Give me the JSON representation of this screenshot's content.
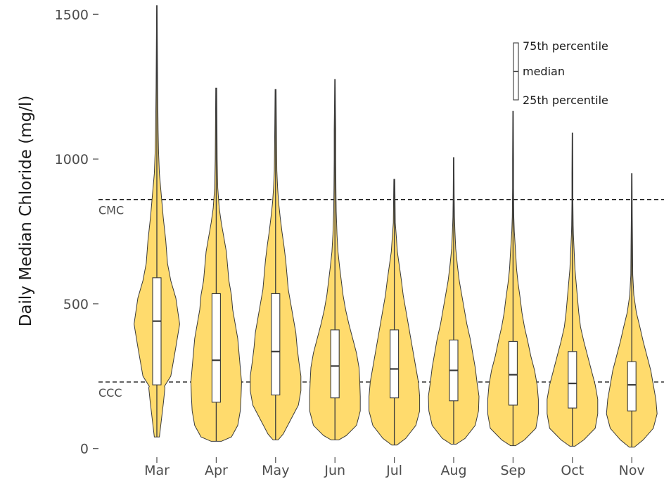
{
  "chart_data": {
    "type": "violin",
    "ylabel": "Daily Median Chloride (mg/l)",
    "xlabel": "",
    "ylim": [
      -25,
      1525
    ],
    "yticks": [
      0,
      500,
      1000,
      1500
    ],
    "grid": false,
    "legend_position": "top-right",
    "fill_color": "#ffdb6d",
    "reference_lines": [
      {
        "label": "CMC",
        "value": 860
      },
      {
        "label": "CCC",
        "value": 230
      }
    ],
    "legend": {
      "q75_label": "75th percentile",
      "median_label": "median",
      "q25_label": "25th percentile"
    },
    "categories": [
      "Mar",
      "Apr",
      "May",
      "Jun",
      "Jul",
      "Aug",
      "Sep",
      "Oct",
      "Nov"
    ],
    "series": [
      {
        "month": "Mar",
        "min": 40,
        "max": 1530,
        "q25": 220,
        "median": 440,
        "q75": 590,
        "density_y": [
          40,
          100,
          160,
          210,
          215,
          250,
          350,
          430,
          520,
          580,
          640,
          720,
          800,
          870,
          950,
          1020,
          1100,
          1250,
          1400,
          1530
        ],
        "density_w": [
          0.1,
          0.18,
          0.26,
          0.32,
          0.3,
          0.55,
          0.75,
          0.9,
          0.75,
          0.55,
          0.42,
          0.35,
          0.25,
          0.18,
          0.1,
          0.07,
          0.05,
          0.03,
          0.02,
          0.01
        ]
      },
      {
        "month": "Apr",
        "min": 25,
        "max": 1245,
        "q25": 160,
        "median": 305,
        "q75": 535,
        "density_y": [
          25,
          40,
          80,
          130,
          180,
          230,
          280,
          330,
          380,
          430,
          480,
          530,
          580,
          630,
          680,
          730,
          780,
          830,
          900,
          1000,
          1100,
          1245
        ],
        "density_w": [
          0.2,
          0.6,
          0.85,
          0.95,
          0.98,
          1.0,
          0.95,
          0.9,
          0.85,
          0.75,
          0.65,
          0.6,
          0.5,
          0.45,
          0.4,
          0.3,
          0.2,
          0.12,
          0.06,
          0.04,
          0.03,
          0.02
        ]
      },
      {
        "month": "May",
        "min": 30,
        "max": 1240,
        "q25": 185,
        "median": 335,
        "q75": 535,
        "density_y": [
          30,
          50,
          100,
          150,
          200,
          250,
          300,
          350,
          400,
          450,
          500,
          550,
          600,
          650,
          700,
          750,
          800,
          850,
          900,
          960,
          1050,
          1130,
          1240
        ],
        "density_w": [
          0.1,
          0.3,
          0.6,
          0.9,
          1.0,
          1.0,
          0.92,
          0.85,
          0.8,
          0.7,
          0.6,
          0.5,
          0.45,
          0.4,
          0.33,
          0.25,
          0.18,
          0.12,
          0.08,
          0.05,
          0.04,
          0.03,
          0.02
        ]
      },
      {
        "month": "Jun",
        "min": 30,
        "max": 1275,
        "q25": 175,
        "median": 285,
        "q75": 410,
        "density_y": [
          30,
          45,
          80,
          130,
          180,
          230,
          280,
          330,
          380,
          430,
          480,
          530,
          580,
          630,
          680,
          740,
          820,
          900,
          1000,
          1100,
          1180,
          1275
        ],
        "density_w": [
          0.15,
          0.45,
          0.85,
          1.0,
          1.0,
          0.98,
          0.95,
          0.85,
          0.7,
          0.55,
          0.42,
          0.32,
          0.25,
          0.18,
          0.12,
          0.08,
          0.05,
          0.04,
          0.03,
          0.03,
          0.02,
          0.01
        ]
      },
      {
        "month": "Jul",
        "min": 12,
        "max": 930,
        "q25": 175,
        "median": 275,
        "q75": 410,
        "density_y": [
          12,
          35,
          80,
          130,
          180,
          230,
          280,
          330,
          380,
          430,
          480,
          530,
          580,
          630,
          680,
          730,
          780,
          850,
          930
        ],
        "density_w": [
          0.1,
          0.45,
          0.85,
          1.0,
          1.0,
          0.95,
          0.85,
          0.75,
          0.65,
          0.55,
          0.45,
          0.35,
          0.28,
          0.2,
          0.12,
          0.08,
          0.04,
          0.03,
          0.02
        ]
      },
      {
        "month": "Aug",
        "min": 15,
        "max": 1005,
        "q25": 165,
        "median": 270,
        "q75": 375,
        "density_y": [
          15,
          35,
          80,
          130,
          180,
          230,
          280,
          330,
          380,
          430,
          480,
          530,
          580,
          630,
          690,
          750,
          800,
          880,
          1005
        ],
        "density_w": [
          0.1,
          0.45,
          0.85,
          0.98,
          1.0,
          0.92,
          0.85,
          0.75,
          0.65,
          0.52,
          0.42,
          0.32,
          0.22,
          0.15,
          0.08,
          0.05,
          0.03,
          0.02,
          0.01
        ]
      },
      {
        "month": "Sep",
        "min": 10,
        "max": 1165,
        "q25": 150,
        "median": 255,
        "q75": 370,
        "density_y": [
          10,
          30,
          70,
          120,
          170,
          220,
          270,
          320,
          370,
          420,
          470,
          520,
          570,
          620,
          680,
          750,
          800,
          900,
          1000,
          1165
        ],
        "density_w": [
          0.1,
          0.45,
          0.9,
          1.0,
          1.0,
          0.95,
          0.85,
          0.7,
          0.58,
          0.45,
          0.35,
          0.28,
          0.2,
          0.14,
          0.1,
          0.05,
          0.03,
          0.02,
          0.02,
          0.01
        ]
      },
      {
        "month": "Oct",
        "min": 8,
        "max": 1090,
        "q25": 140,
        "median": 225,
        "q75": 335,
        "density_y": [
          8,
          30,
          70,
          120,
          170,
          220,
          270,
          320,
          370,
          420,
          470,
          520,
          570,
          620,
          680,
          740,
          770,
          850,
          950,
          1090
        ],
        "density_w": [
          0.1,
          0.45,
          0.9,
          1.0,
          1.0,
          0.9,
          0.75,
          0.6,
          0.45,
          0.32,
          0.25,
          0.2,
          0.15,
          0.1,
          0.07,
          0.04,
          0.03,
          0.02,
          0.02,
          0.01
        ]
      },
      {
        "month": "Nov",
        "min": 5,
        "max": 950,
        "q25": 130,
        "median": 220,
        "q75": 300,
        "density_y": [
          5,
          30,
          70,
          120,
          170,
          220,
          270,
          320,
          370,
          420,
          470,
          530,
          600,
          700,
          800,
          950
        ],
        "density_w": [
          0.1,
          0.45,
          0.85,
          1.0,
          0.95,
          0.85,
          0.75,
          0.6,
          0.45,
          0.32,
          0.18,
          0.08,
          0.04,
          0.03,
          0.02,
          0.01
        ]
      }
    ]
  }
}
